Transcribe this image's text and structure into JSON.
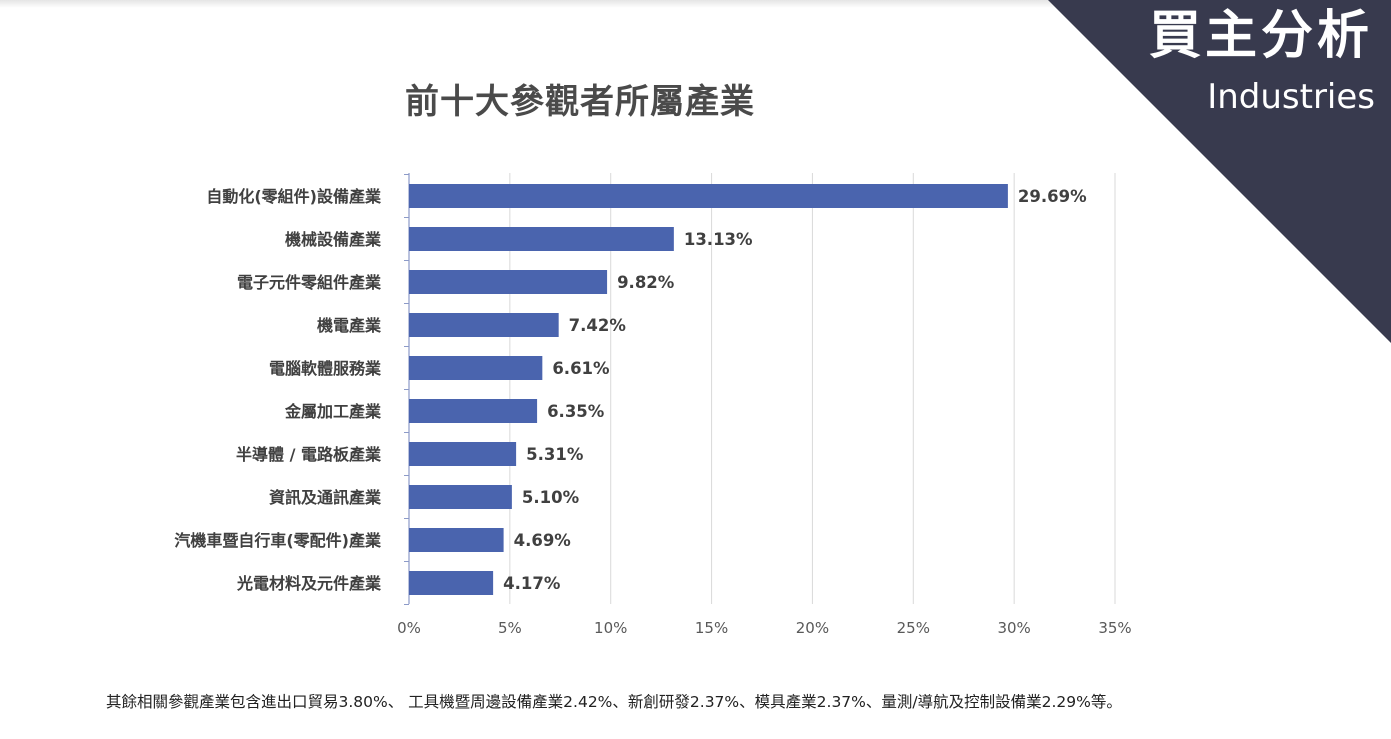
{
  "header": {
    "badge_title": "買主分析",
    "badge_subtitle": "Industries",
    "band_color": "#383a4e"
  },
  "chart_data": {
    "type": "bar",
    "orientation": "horizontal",
    "title": "前十大參觀者所屬產業",
    "xlabel": "",
    "ylabel": "",
    "categories": [
      "自動化(零組件)設備產業",
      "機械設備產業",
      "電子元件零組件產業",
      "機電產業",
      "電腦軟體服務業",
      "金屬加工產業",
      "半導體 / 電路板產業",
      "資訊及通訊產業",
      "汽機車暨自行車(零配件)產業",
      "光電材料及元件產業"
    ],
    "values": [
      29.69,
      13.13,
      9.82,
      7.42,
      6.61,
      6.35,
      5.31,
      5.1,
      4.69,
      4.17
    ],
    "data_labels": [
      "29.69%",
      "13.13%",
      "9.82%",
      "7.42%",
      "6.61%",
      "6.35%",
      "5.31%",
      "5.10%",
      "4.69%",
      "4.17%"
    ],
    "xlim": [
      0,
      35
    ],
    "x_ticks": [
      0,
      5,
      10,
      15,
      20,
      25,
      30,
      35
    ],
    "x_tick_labels": [
      "0%",
      "5%",
      "10%",
      "15%",
      "20%",
      "25%",
      "30%",
      "35%"
    ],
    "grid": true,
    "legend": "none",
    "bar_color": "#4a64ae"
  },
  "footnote": "其餘相關參觀產業包含進出口貿易3.80%、 工具機暨周邊設備產業2.42%、新創研發2.37%、模具產業2.37%、量測/導航及控制設備業2.29%等。"
}
